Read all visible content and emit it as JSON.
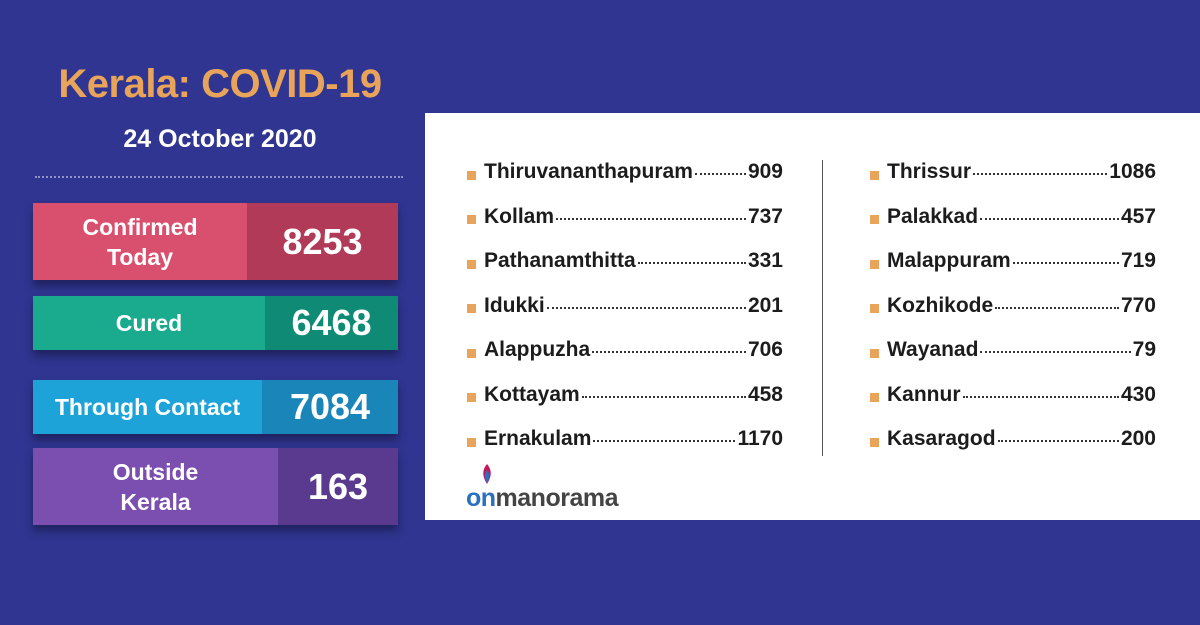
{
  "header": {
    "title": "Kerala: COVID-19",
    "date": "24 October 2020"
  },
  "stats": [
    {
      "label": "Confirmed Today",
      "value": 8253
    },
    {
      "label": "Cured",
      "value": 6468
    },
    {
      "label": "Through Contact",
      "value": 7084
    },
    {
      "label": "Outside Kerala",
      "value": 163
    }
  ],
  "districts": {
    "left": [
      {
        "name": "Thiruvananthapuram",
        "value": 909
      },
      {
        "name": "Kollam",
        "value": 737
      },
      {
        "name": "Pathanamthitta",
        "value": 331
      },
      {
        "name": "Idukki",
        "value": 201
      },
      {
        "name": "Alappuzha",
        "value": 706
      },
      {
        "name": "Kottayam",
        "value": 458
      },
      {
        "name": "Ernakulam",
        "value": 1170
      }
    ],
    "right": [
      {
        "name": "Thrissur",
        "value": 1086
      },
      {
        "name": "Palakkad",
        "value": 457
      },
      {
        "name": "Malappuram",
        "value": 719
      },
      {
        "name": "Kozhikode",
        "value": 770
      },
      {
        "name": "Wayanad",
        "value": 79
      },
      {
        "name": "Kannur",
        "value": 430
      },
      {
        "name": "Kasaragod",
        "value": 200
      }
    ]
  },
  "logo": {
    "prefix": "on",
    "suffix": "manorama"
  }
}
